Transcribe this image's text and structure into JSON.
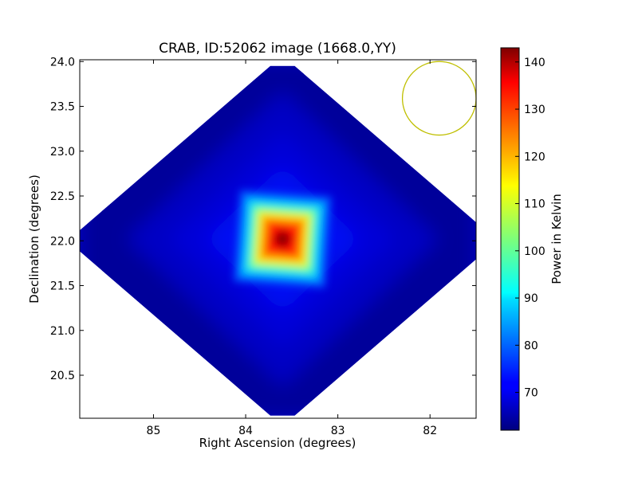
{
  "chart_data": {
    "type": "heatmap",
    "title": "CRAB, ID:52062 image (1668.0,YY)",
    "xlabel": "Right Ascension (degrees)",
    "ylabel": "Declination (degrees)",
    "xlim": [
      85.8,
      81.5
    ],
    "ylim": [
      20.02,
      24.02
    ],
    "x_ticks": [
      85,
      84,
      83,
      82
    ],
    "x_tick_labels": [
      "85",
      "84",
      "83",
      "82"
    ],
    "y_ticks": [
      20.5,
      21.0,
      21.5,
      22.0,
      22.5,
      23.0,
      23.5,
      24.0
    ],
    "y_tick_labels": [
      "20.5",
      "21.0",
      "21.5",
      "22.0",
      "22.5",
      "23.0",
      "23.5",
      "24.0"
    ],
    "colormap": "jet",
    "colorbar": {
      "label": "Power in Kelvin",
      "range": [
        62,
        143
      ],
      "ticks": [
        70,
        80,
        90,
        100,
        110,
        120,
        130,
        140
      ],
      "tick_labels": [
        "70",
        "80",
        "90",
        "100",
        "110",
        "120",
        "130",
        "140"
      ]
    },
    "image": {
      "footprint": "diamond",
      "footprint_center": [
        83.6,
        22.0
      ],
      "footprint_half_width_ra": 2.2,
      "footprint_half_height_dec": 1.95,
      "background_level": 68,
      "peak": {
        "ra": 83.6,
        "dec": 22.02,
        "value": 142
      }
    },
    "beam_circle": {
      "ra": 81.9,
      "dec": 23.59,
      "radius_deg": 0.36,
      "color": "#bfbf00"
    },
    "grid": false
  }
}
